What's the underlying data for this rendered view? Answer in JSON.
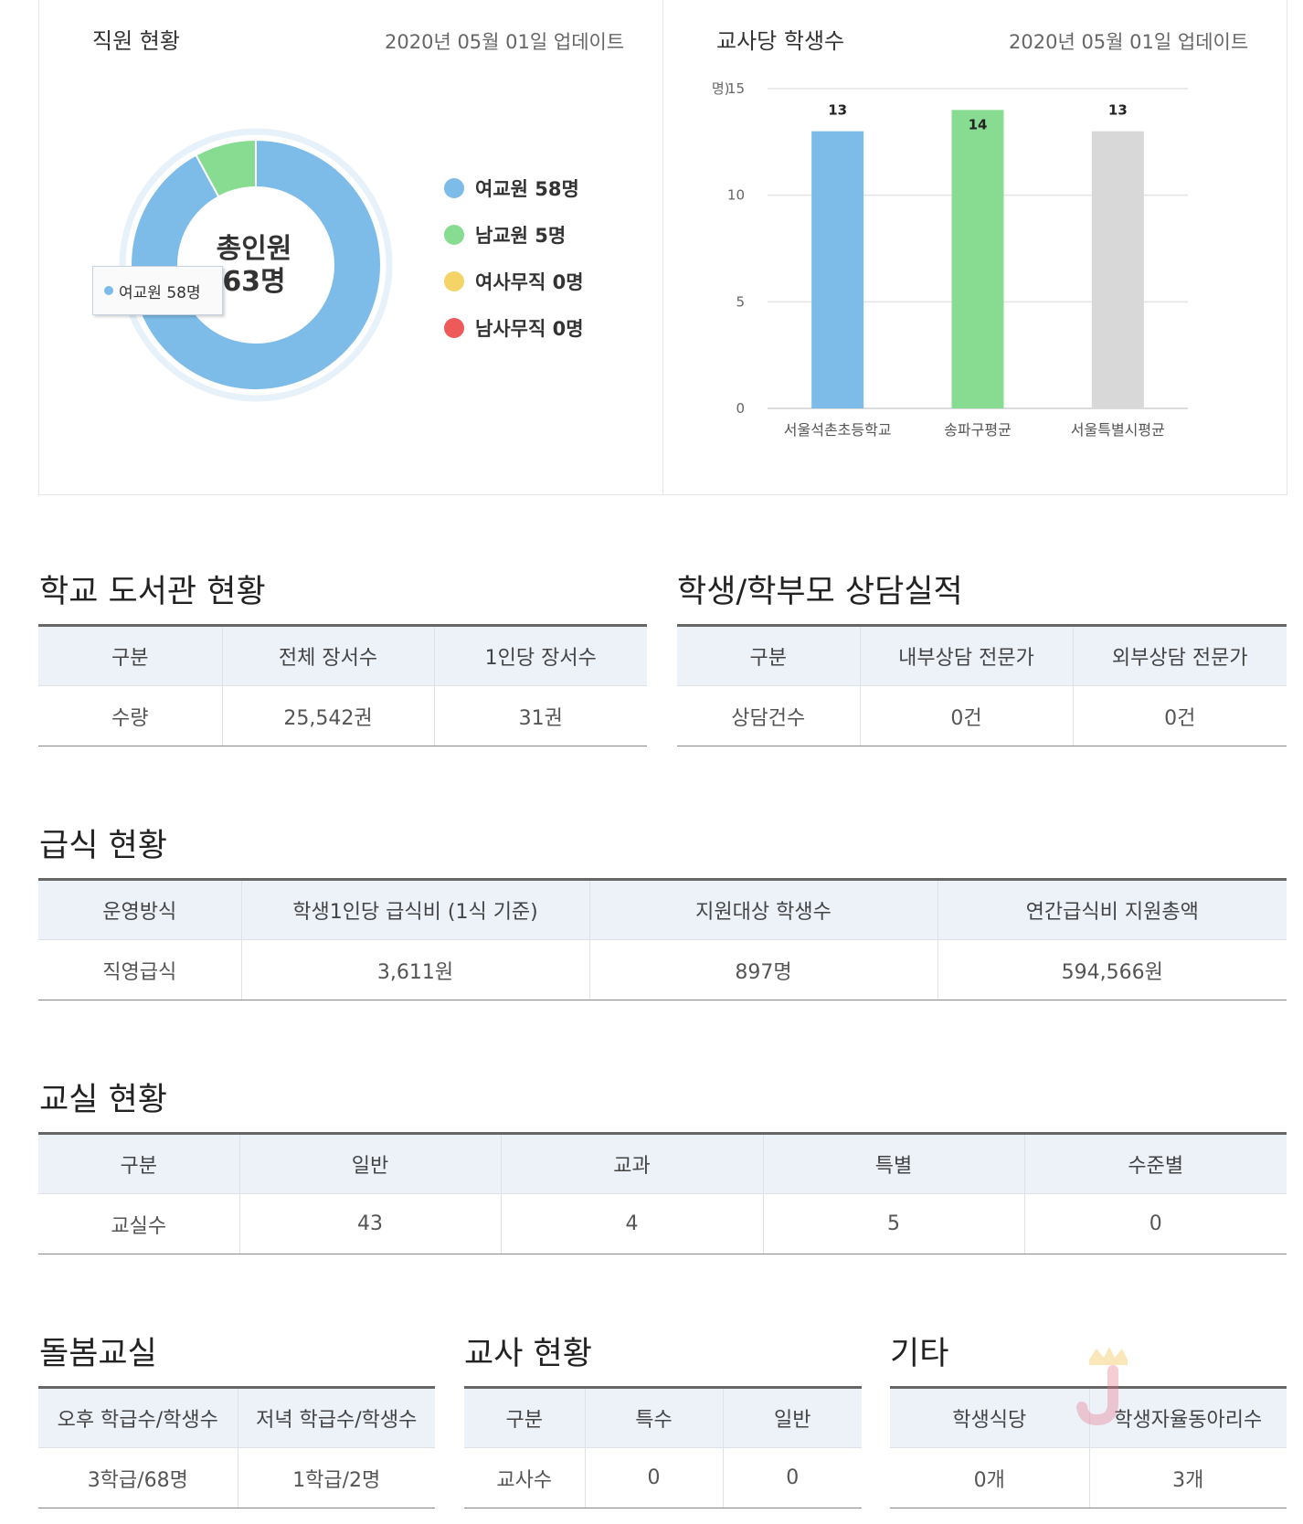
{
  "staff": {
    "title": "직원 현황",
    "date": "2020년 05월 01일 업데이트",
    "center_line1": "총인원",
    "center_line2": "63명",
    "tooltip": "여교원 58명",
    "legend": [
      {
        "label": "여교원 58명",
        "color": "#7dbce8"
      },
      {
        "label": "남교원 5명",
        "color": "#88dc92"
      },
      {
        "label": "여사무직 0명",
        "color": "#f5d467"
      },
      {
        "label": "남사무직 0명",
        "color": "#ee5a5a"
      }
    ]
  },
  "ratio": {
    "title": "교사당 학생수",
    "date": "2020년 05월 01일 업데이트"
  },
  "chart_data": [
    {
      "type": "pie",
      "title": "직원 현황",
      "categories": [
        "여교원",
        "남교원",
        "여사무직",
        "남사무직"
      ],
      "values": [
        58,
        5,
        0,
        0
      ],
      "colors": [
        "#7dbce8",
        "#88dc92",
        "#f5d467",
        "#ee5a5a"
      ],
      "unit": "명",
      "total_label": "총인원",
      "total": "63명",
      "donut": true,
      "legend_position": "right"
    },
    {
      "type": "bar",
      "title": "교사당 학생수",
      "categories": [
        "서울석촌초등학교",
        "송파구평균",
        "서울특별시평균"
      ],
      "values": [
        13,
        14,
        13
      ],
      "value_labels": [
        "13",
        "14",
        "13"
      ],
      "colors": [
        "#7dbce8",
        "#88dc92",
        "#d8d8d8"
      ],
      "yunit": "(명)",
      "ylim": [
        0,
        15
      ],
      "yticks": [
        0,
        5,
        10,
        15
      ],
      "grid": true
    }
  ],
  "library": {
    "title": "학교 도서관 현황",
    "headers": [
      "구분",
      "전체 장서수",
      "1인당 장서수"
    ],
    "row": [
      "수량",
      "25,542권",
      "31권"
    ]
  },
  "counsel": {
    "title": "학생/학부모 상담실적",
    "headers": [
      "구분",
      "내부상담 전문가",
      "외부상담 전문가"
    ],
    "row": [
      "상담건수",
      "0건",
      "0건"
    ]
  },
  "meal": {
    "title": "급식 현황",
    "headers": [
      "운영방식",
      "학생1인당 급식비 (1식 기준)",
      "지원대상 학생수",
      "연간급식비 지원총액"
    ],
    "row": [
      "직영급식",
      "3,611원",
      "897명",
      "594,566원"
    ]
  },
  "classroom": {
    "title": "교실 현황",
    "headers": [
      "구분",
      "일반",
      "교과",
      "특별",
      "수준별"
    ],
    "row": [
      "교실수",
      "43",
      "4",
      "5",
      "0"
    ]
  },
  "care": {
    "title": "돌봄교실",
    "headers": [
      "오후 학급수/학생수",
      "저녁 학급수/학생수"
    ],
    "row": [
      "3학급/68명",
      "1학급/2명"
    ]
  },
  "teacher": {
    "title": "교사 현황",
    "headers": [
      "구분",
      "특수",
      "일반"
    ],
    "row": [
      "교사수",
      "0",
      "0"
    ]
  },
  "etc": {
    "title": "기타",
    "headers": [
      "학생식당",
      "학생자율동아리수"
    ],
    "row": [
      "0개",
      "3개"
    ]
  }
}
